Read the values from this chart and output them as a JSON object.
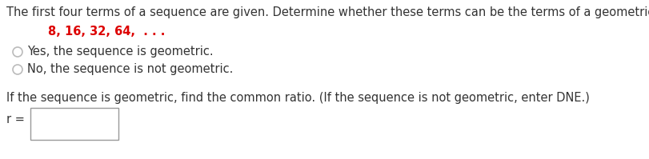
{
  "line1": "The first four terms of a sequence are given. Determine whether these terms can be the terms of a geometric sequence.",
  "sequence_text": "8, 16, 32, 64,  . . .",
  "sequence_color": "#DD0000",
  "option1": "Yes, the sequence is geometric.",
  "option2": "No, the sequence is not geometric.",
  "line_bottom1": "If the sequence is geometric, find the common ratio. (If the sequence is not geometric, enter DNE.)",
  "r_label": "r =",
  "bg_color": "#ffffff",
  "text_color": "#333333",
  "font_size_main": 10.5,
  "font_size_seq": 10.5,
  "font_size_option": 10.5,
  "radio_color": "#bbbbbb"
}
